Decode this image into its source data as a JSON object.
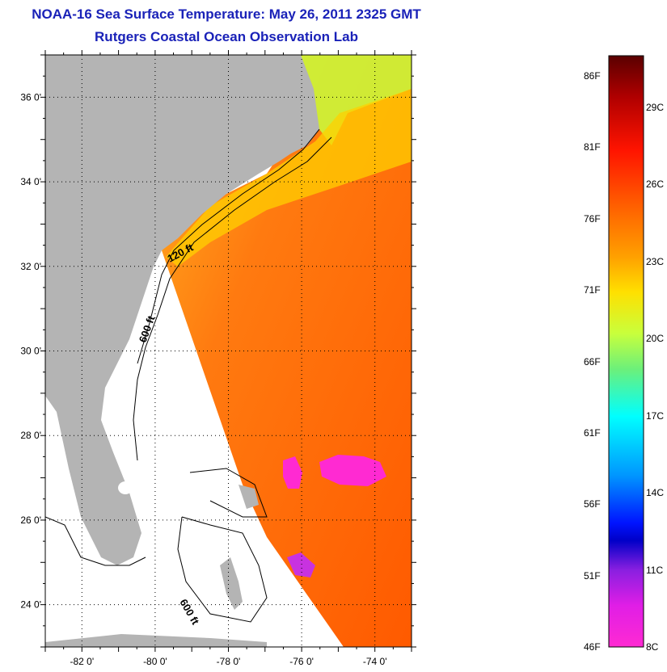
{
  "header": {
    "title": "NOAA-16 Sea Surface Temperature:  May 26, 2011 2325 GMT",
    "subtitle": "Rutgers Coastal Ocean Observation Lab"
  },
  "map": {
    "lon_ticks": [
      "-82 0'",
      "-80 0'",
      "-78 0'",
      "-76 0'",
      "-74 0'"
    ],
    "lat_ticks": [
      "36 0'",
      "34 0'",
      "32 0'",
      "30 0'",
      "28 0'",
      "26 0'",
      "24 0'"
    ],
    "lon_range": [
      -83,
      -73
    ],
    "lat_range": [
      23,
      37
    ],
    "grid": "dotted",
    "isobath_labels": [
      "120 ft",
      "600 ft",
      "600 ft"
    ],
    "colors": {
      "land": "#b4b4b4",
      "ocean_warm": "#ff6a00",
      "no_data": "#ffffff"
    }
  },
  "colorbar": {
    "fahrenheit_labels": [
      "86F",
      "81F",
      "76F",
      "71F",
      "66F",
      "61F",
      "56F",
      "51F",
      "46F"
    ],
    "celsius_labels": [
      "29C",
      "26C",
      "23C",
      "20C",
      "17C",
      "14C",
      "11C",
      "8C"
    ]
  }
}
